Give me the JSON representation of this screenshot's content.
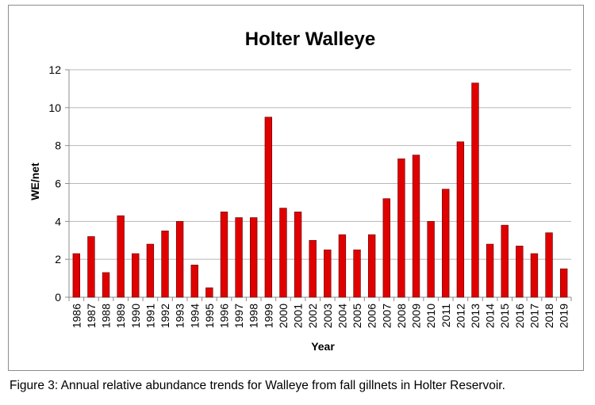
{
  "caption": "Figure 3: Annual relative abundance trends for Walleye from fall gillnets in Holter Reservoir.",
  "colors": {
    "bar": "#e00000",
    "bar_stroke": "#5a0000",
    "grid": "#b8b8b8",
    "axis": "#8c8c8c",
    "text": "#000000"
  },
  "chart_data": {
    "type": "bar",
    "title": "Holter Walleye",
    "xlabel": "Year",
    "ylabel": "WE/net",
    "ylim": [
      0,
      12
    ],
    "yticks": [
      0,
      2,
      4,
      6,
      8,
      10,
      12
    ],
    "grid": true,
    "legend": "none",
    "categories": [
      "1986",
      "1987",
      "1988",
      "1989",
      "1990",
      "1991",
      "1992",
      "1993",
      "1994",
      "1995",
      "1996",
      "1997",
      "1998",
      "1999",
      "2000",
      "2001",
      "2002",
      "2003",
      "2004",
      "2005",
      "2006",
      "2007",
      "2008",
      "2009",
      "2010",
      "2011",
      "2012",
      "2013",
      "2014",
      "2015",
      "2016",
      "2017",
      "2018",
      "2019"
    ],
    "values": [
      2.3,
      3.2,
      1.3,
      4.3,
      2.3,
      2.8,
      3.5,
      4.0,
      1.7,
      0.5,
      4.5,
      4.2,
      4.2,
      9.5,
      4.7,
      4.5,
      3.0,
      2.5,
      3.3,
      2.5,
      3.3,
      5.2,
      7.3,
      7.5,
      4.0,
      5.7,
      8.2,
      11.3,
      2.8,
      3.8,
      2.7,
      2.3,
      3.4,
      1.5
    ]
  }
}
